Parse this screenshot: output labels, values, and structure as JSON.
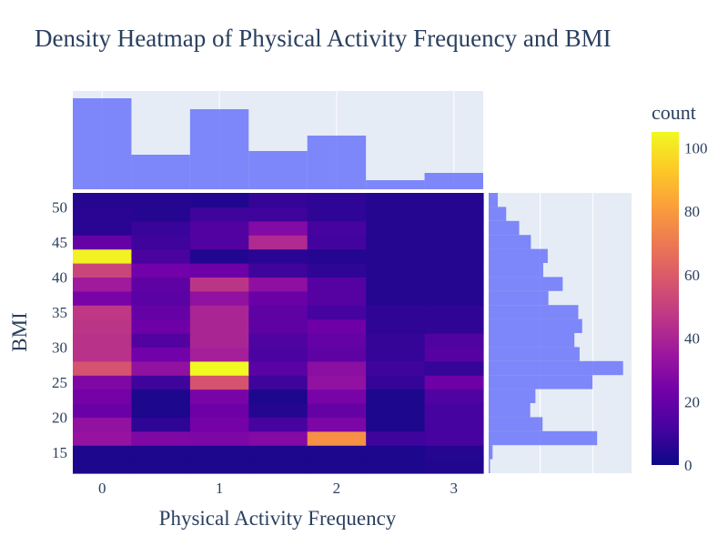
{
  "chart_data": {
    "type": "heatmap",
    "title": "Density Heatmap of Physical Activity Frequency and BMI",
    "xlabel": "Physical Activity Frequency",
    "ylabel": "BMI",
    "colorbar_title": "count",
    "colorscale": [
      "#0d0887",
      "#46039f",
      "#7201a8",
      "#9c179e",
      "#bd3786",
      "#d8576b",
      "#ed7953",
      "#fb9f3a",
      "#fdca26",
      "#f0f921"
    ],
    "zlim": [
      0,
      105
    ],
    "colorbar_ticks": [
      0,
      20,
      40,
      60,
      80,
      100
    ],
    "x_ticks": [
      0,
      1,
      2,
      3
    ],
    "y_ticks": [
      15,
      20,
      25,
      30,
      35,
      40,
      45,
      50
    ],
    "x_bin_edges": [
      -0.25,
      0.25,
      0.75,
      1.25,
      1.75,
      2.25,
      2.75,
      3.25
    ],
    "y_bin_edges": [
      12,
      14,
      16,
      18,
      20,
      22,
      24,
      26,
      28,
      30,
      32,
      34,
      36,
      38,
      40,
      42,
      44,
      46,
      48,
      50,
      52
    ],
    "z": [
      [
        3,
        3,
        3,
        3,
        3,
        3,
        4
      ],
      [
        3,
        3,
        3,
        3,
        3,
        3,
        5
      ],
      [
        33,
        27,
        26,
        28,
        77,
        10,
        12
      ],
      [
        32,
        7,
        24,
        12,
        26,
        3,
        12
      ],
      [
        21,
        3,
        22,
        5,
        20,
        3,
        12
      ],
      [
        24,
        3,
        25,
        3,
        25,
        3,
        14
      ],
      [
        27,
        10,
        57,
        10,
        32,
        8,
        22
      ],
      [
        57,
        32,
        105,
        17,
        30,
        10,
        8
      ],
      [
        45,
        23,
        38,
        13,
        18,
        8,
        16
      ],
      [
        45,
        15,
        40,
        14,
        20,
        8,
        14
      ],
      [
        46,
        22,
        40,
        18,
        22,
        7,
        7
      ],
      [
        47,
        20,
        40,
        18,
        12,
        7,
        7
      ],
      [
        25,
        17,
        32,
        21,
        16,
        5,
        5
      ],
      [
        36,
        18,
        46,
        31,
        16,
        5,
        5
      ],
      [
        52,
        23,
        22,
        10,
        7,
        5,
        5
      ],
      [
        103,
        13,
        4,
        6,
        5,
        5,
        5
      ],
      [
        20,
        10,
        15,
        42,
        11,
        5,
        5
      ],
      [
        6,
        9,
        15,
        28,
        12,
        5,
        5
      ],
      [
        6,
        5,
        10,
        10,
        7,
        5,
        5
      ],
      [
        5,
        5,
        4,
        8,
        7,
        5,
        5
      ]
    ],
    "x_marginal": {
      "bin_edges": [
        -0.25,
        0.25,
        0.75,
        1.25,
        1.75,
        2.25,
        2.75,
        3.25
      ],
      "counts": [
        100,
        38,
        88,
        42,
        59,
        10,
        18
      ]
    },
    "y_marginal": {
      "bin_edges": [
        12,
        14,
        16,
        18,
        20,
        22,
        24,
        26,
        28,
        30,
        32,
        34,
        36,
        38,
        40,
        42,
        44,
        46,
        48,
        50,
        52
      ],
      "counts": [
        2,
        6,
        167,
        83,
        64,
        72,
        160,
        207,
        140,
        132,
        144,
        138,
        92,
        114,
        84,
        91,
        65,
        47,
        27,
        14
      ]
    },
    "grid": true
  }
}
